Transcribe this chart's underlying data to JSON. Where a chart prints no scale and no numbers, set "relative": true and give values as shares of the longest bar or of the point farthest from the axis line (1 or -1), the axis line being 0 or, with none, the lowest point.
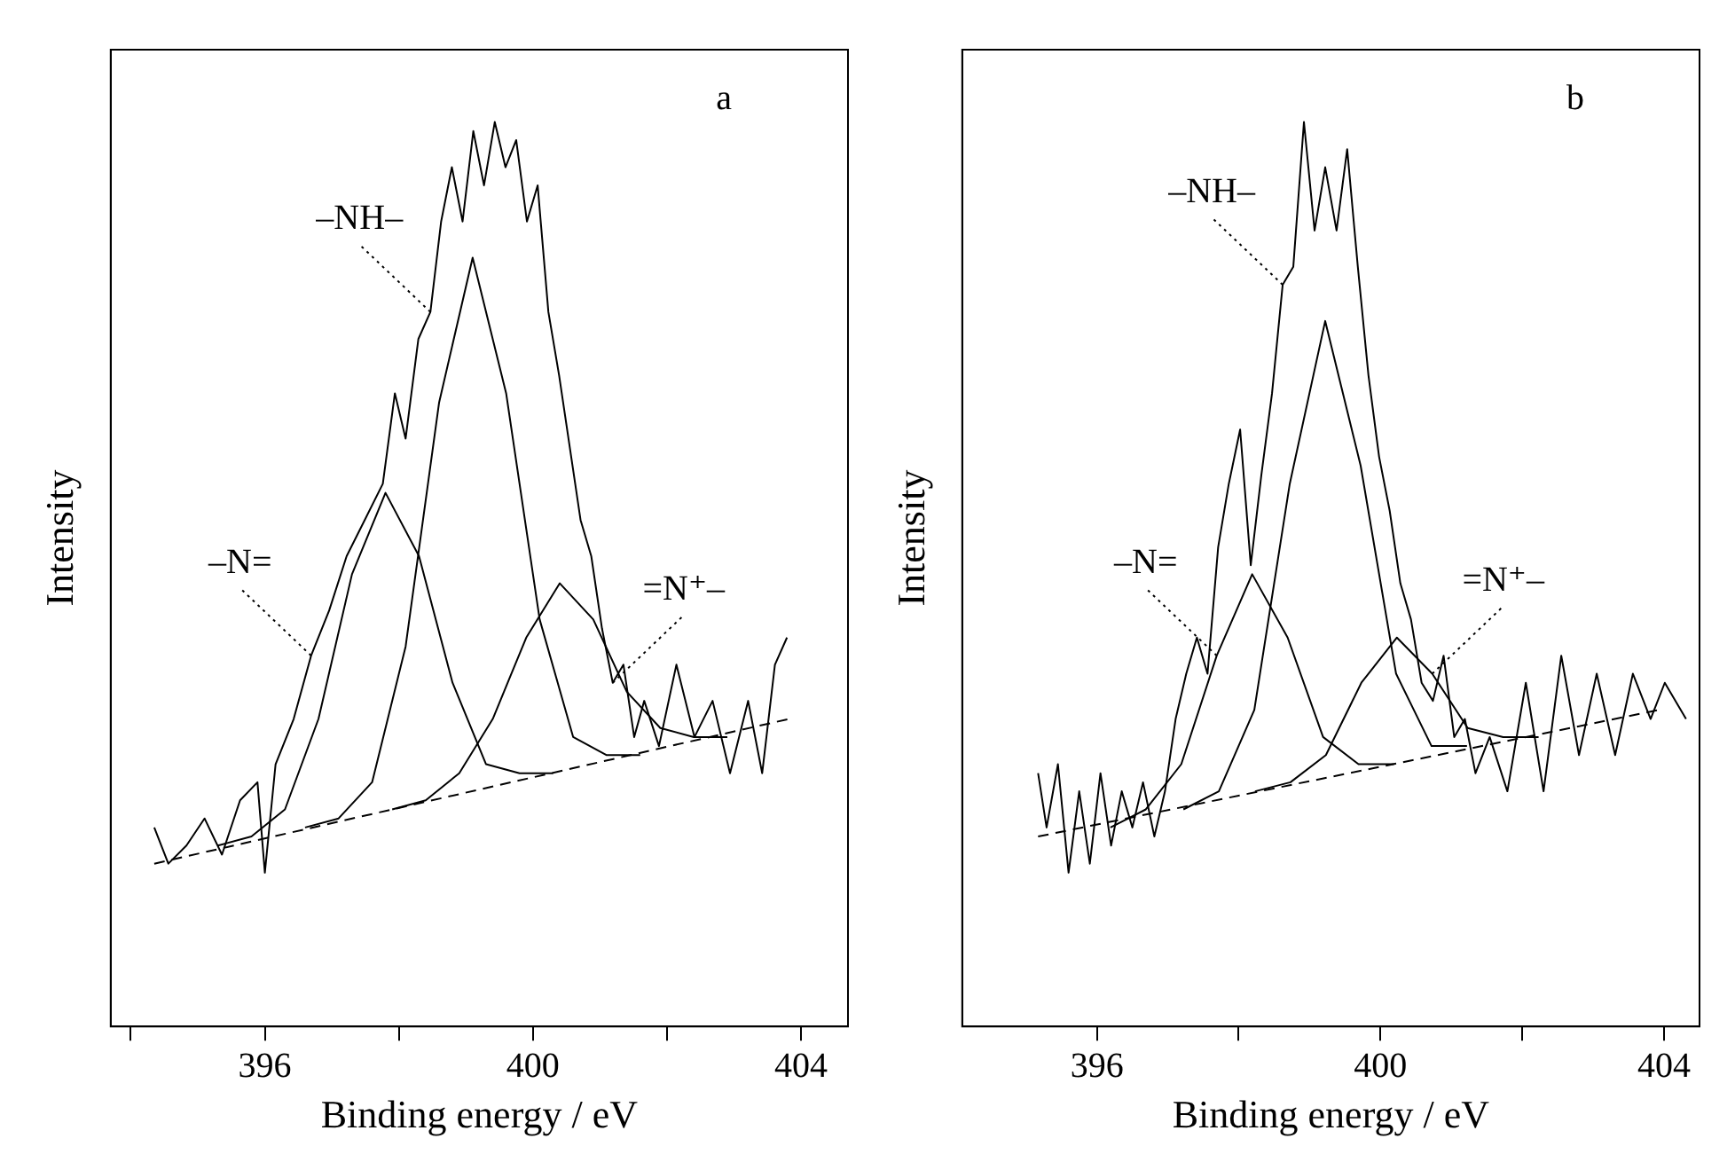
{
  "chart_data": [
    {
      "type": "line",
      "xlabel": "Binding energy / eV",
      "ylabel": "Intensity",
      "relative": true,
      "xlim": [
        393.7,
        404.7
      ],
      "xticks": [
        {
          "value": 394,
          "label": null
        },
        396,
        {
          "value": 398,
          "label": null
        },
        400,
        {
          "value": 402,
          "label": null
        },
        404
      ],
      "tick_labels": "x",
      "grid": false,
      "legend": false,
      "marker": "none",
      "annotations": [
        "a",
        {
          "text": "–NH–",
          "x": 398.47,
          "y": 0.79
        },
        {
          "text": "–N=",
          "x": 396.69,
          "y": 0.41
        },
        {
          "text": "=N⁺–",
          "x": 401.19,
          "y": 0.38
        }
      ],
      "series": [
        {
          "color": "#000000",
          "x": [
            394.35,
            394.56,
            394.83,
            395.1,
            395.36,
            395.63,
            395.89,
            396,
            396.16,
            396.43,
            396.69,
            396.96,
            397.22,
            397.49,
            397.76,
            397.94,
            398.1,
            398.29,
            398.47,
            398.63,
            398.79,
            398.95,
            399.11,
            399.27,
            399.43,
            399.59,
            399.75,
            399.91,
            400.07,
            400.23,
            400.39,
            400.55,
            400.71,
            400.87,
            401.03,
            401.19,
            401.35,
            401.51,
            401.66,
            401.88,
            402.14,
            402.41,
            402.68,
            402.94,
            403.21,
            403.42,
            403.61,
            403.79
          ],
          "values": [
            0.22,
            0.18,
            0.2,
            0.23,
            0.19,
            0.25,
            0.27,
            0.17,
            0.29,
            0.34,
            0.41,
            0.46,
            0.52,
            0.56,
            0.6,
            0.7,
            0.65,
            0.76,
            0.79,
            0.89,
            0.95,
            0.89,
            0.99,
            0.93,
            1.0,
            0.95,
            0.98,
            0.89,
            0.93,
            0.79,
            0.72,
            0.64,
            0.56,
            0.52,
            0.44,
            0.38,
            0.4,
            0.32,
            0.36,
            0.31,
            0.4,
            0.32,
            0.36,
            0.28,
            0.36,
            0.28,
            0.4,
            0.43
          ]
        },
        {
          "color": "#000000",
          "x": [
            395.3,
            395.8,
            396.3,
            396.8,
            397.3,
            397.8,
            398.3,
            398.8,
            399.3,
            399.8,
            400.3
          ],
          "values": [
            0.2,
            0.21,
            0.24,
            0.34,
            0.5,
            0.59,
            0.52,
            0.38,
            0.29,
            0.28,
            0.28
          ]
        },
        {
          "color": "#000000",
          "x": [
            396.6,
            397.1,
            397.6,
            398.1,
            398.6,
            399.1,
            399.6,
            400.1,
            400.6,
            401.1,
            401.6
          ],
          "values": [
            0.22,
            0.23,
            0.27,
            0.42,
            0.69,
            0.85,
            0.7,
            0.45,
            0.32,
            0.3,
            0.3
          ]
        },
        {
          "color": "#000000",
          "x": [
            397.9,
            398.4,
            398.9,
            399.4,
            399.9,
            400.4,
            400.9,
            401.4,
            401.9,
            402.4,
            402.9
          ],
          "values": [
            0.24,
            0.25,
            0.28,
            0.34,
            0.43,
            0.49,
            0.45,
            0.37,
            0.33,
            0.32,
            0.32
          ]
        },
        {
          "color": "#000000",
          "line_style": "dashed",
          "x": [
            394.35,
            403.82
          ],
          "values": [
            0.18,
            0.34
          ]
        }
      ]
    },
    {
      "type": "line",
      "xlabel": "Binding energy / eV",
      "ylabel": "Intensity",
      "relative": true,
      "xlim": [
        394.1,
        404.5
      ],
      "xticks": [
        396,
        {
          "value": 398,
          "label": null
        },
        400,
        {
          "value": 402,
          "label": null
        },
        404
      ],
      "tick_labels": "x",
      "grid": false,
      "legend": false,
      "marker": "none",
      "annotations": [
        "b",
        {
          "text": "–NH–",
          "x": 398.62,
          "y": 0.82
        },
        {
          "text": "–N=",
          "x": 397.69,
          "y": 0.41
        },
        {
          "text": "=N⁺–",
          "x": 400.73,
          "y": 0.39
        }
      ],
      "series": [
        {
          "color": "#000000",
          "x": [
            395.17,
            395.29,
            395.45,
            395.6,
            395.75,
            395.9,
            396.05,
            396.2,
            396.35,
            396.5,
            396.65,
            396.81,
            396.96,
            397.11,
            397.26,
            397.41,
            397.56,
            397.71,
            397.86,
            398.02,
            398.17,
            398.32,
            398.47,
            398.62,
            398.77,
            398.92,
            399.07,
            399.22,
            399.38,
            399.53,
            399.68,
            399.83,
            399.98,
            400.13,
            400.28,
            400.43,
            400.58,
            400.74,
            400.89,
            401.04,
            401.19,
            401.34,
            401.54,
            401.79,
            402.05,
            402.3,
            402.55,
            402.8,
            403.05,
            403.31,
            403.56,
            403.81,
            404.01,
            404.31
          ],
          "values": [
            0.28,
            0.22,
            0.29,
            0.17,
            0.26,
            0.18,
            0.28,
            0.2,
            0.26,
            0.22,
            0.27,
            0.21,
            0.26,
            0.34,
            0.39,
            0.43,
            0.39,
            0.53,
            0.6,
            0.66,
            0.51,
            0.61,
            0.7,
            0.82,
            0.84,
            1.0,
            0.88,
            0.95,
            0.88,
            0.97,
            0.84,
            0.72,
            0.63,
            0.57,
            0.49,
            0.45,
            0.38,
            0.36,
            0.41,
            0.32,
            0.34,
            0.28,
            0.32,
            0.26,
            0.38,
            0.26,
            0.41,
            0.3,
            0.39,
            0.3,
            0.39,
            0.34,
            0.38,
            0.34
          ]
        },
        {
          "color": "#000000",
          "x": [
            396.19,
            396.69,
            397.19,
            397.69,
            398.19,
            398.69,
            399.19,
            399.69,
            400.19
          ],
          "values": [
            0.22,
            0.24,
            0.29,
            0.41,
            0.5,
            0.43,
            0.32,
            0.29,
            0.29
          ]
        },
        {
          "color": "#000000",
          "x": [
            397.22,
            397.72,
            398.22,
            398.72,
            399.22,
            399.72,
            400.22,
            400.72,
            401.22
          ],
          "values": [
            0.24,
            0.26,
            0.35,
            0.6,
            0.78,
            0.62,
            0.39,
            0.31,
            0.31
          ]
        },
        {
          "color": "#000000",
          "x": [
            398.23,
            398.73,
            399.23,
            399.73,
            400.23,
            400.73,
            401.23,
            401.73,
            402.23
          ],
          "values": [
            0.26,
            0.27,
            0.3,
            0.38,
            0.43,
            0.39,
            0.33,
            0.32,
            0.32
          ]
        },
        {
          "color": "#000000",
          "line_style": "dashed",
          "x": [
            395.17,
            403.93
          ],
          "values": [
            0.21,
            0.35
          ]
        }
      ]
    }
  ]
}
